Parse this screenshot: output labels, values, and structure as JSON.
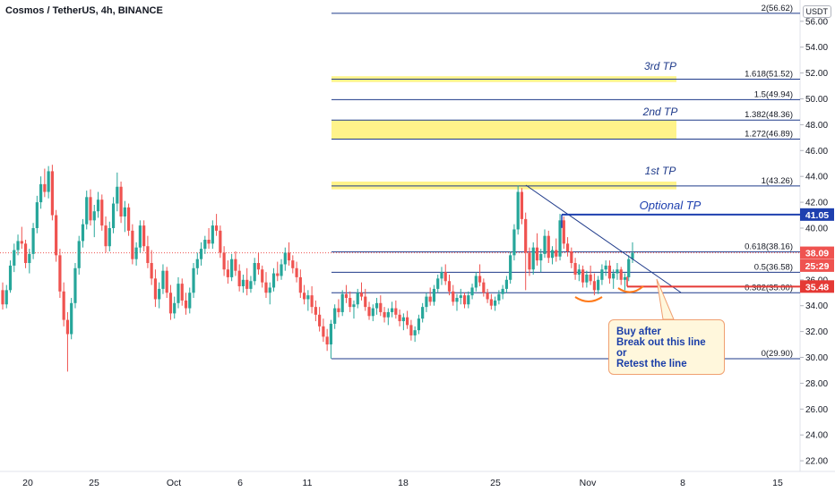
{
  "header": {
    "title": "Cosmos / TetherUS, 4h, BINANCE",
    "currency_badge": "USDT"
  },
  "colors": {
    "up": "#26a69a",
    "down": "#ef5350",
    "fib_line": "#1e3a8a",
    "tp_zone": "#fff176",
    "tp_text": "#1e3a8a",
    "optional_tp_line": "#1e40af",
    "support_line": "#e53935",
    "arc": "#ff7a1a",
    "callout_border": "#f0a070",
    "callout_bg": "#fff7dc"
  },
  "chart_data": {
    "type": "candlestick",
    "symbol": "Cosmos / TetherUS",
    "interval": "4h",
    "exchange": "BINANCE",
    "ylim": [
      21,
      58
    ],
    "y_ticks": [
      "22.00",
      "24.00",
      "26.00",
      "28.00",
      "30.00",
      "32.00",
      "34.00",
      "36.00",
      "38.00",
      "40.00",
      "42.00",
      "44.00",
      "46.00",
      "48.00",
      "50.00",
      "52.00",
      "54.00",
      "56.00"
    ],
    "x_ticks": [
      "20",
      "25",
      "Oct",
      "6",
      "11",
      "18",
      "25",
      "Nov",
      "8",
      "15"
    ],
    "fib_levels": [
      {
        "label": "2(56.62)",
        "value": 56.62
      },
      {
        "label": "1.618(51.52)",
        "value": 51.52
      },
      {
        "label": "1.5(49.94)",
        "value": 49.94
      },
      {
        "label": "1.382(48.36)",
        "value": 48.36
      },
      {
        "label": "1.272(46.89)",
        "value": 46.89
      },
      {
        "label": "1(43.26)",
        "value": 43.26
      },
      {
        "label": "0.618(38.16)",
        "value": 38.16
      },
      {
        "label": "0.5(36.58)",
        "value": 36.58
      },
      {
        "label": "0.382(35.00)",
        "value": 35.0
      },
      {
        "label": "0(29.90)",
        "value": 29.9
      }
    ],
    "tp_zones": [
      {
        "label": "3rd TP",
        "from": 51.3,
        "to": 51.75
      },
      {
        "label": "2nd TP",
        "from": 46.89,
        "to": 48.36
      },
      {
        "label": "1st TP",
        "from": 43.0,
        "to": 43.6
      }
    ],
    "optional_tp": {
      "label": "Optional TP",
      "value": 41.05
    },
    "price_labels": [
      {
        "text": "41.05",
        "value": 41.05,
        "color": "#1e40af"
      },
      {
        "text": "38.09",
        "value": 38.09,
        "color": "#ef5350"
      },
      {
        "text": "25:29",
        "value": 37.1,
        "color": "#ef5350"
      },
      {
        "text": "35.48",
        "value": 35.48,
        "color": "#e53935"
      }
    ],
    "last_price": 38.09,
    "support": 35.48,
    "callout_lines": [
      "Buy after",
      "Break out this line",
      "or",
      "Retest the line"
    ],
    "candles": [
      [
        35.2,
        35.8,
        33.7,
        34.1
      ],
      [
        34.1,
        35.6,
        33.8,
        35.2
      ],
      [
        35.2,
        37.5,
        35.0,
        37.1
      ],
      [
        37.1,
        38.8,
        36.6,
        38.3
      ],
      [
        38.3,
        39.5,
        37.9,
        39.0
      ],
      [
        39.0,
        40.1,
        38.4,
        38.8
      ],
      [
        38.8,
        39.1,
        36.9,
        37.3
      ],
      [
        37.3,
        38.4,
        36.5,
        38.0
      ],
      [
        38.0,
        40.4,
        37.6,
        40.0
      ],
      [
        40.0,
        42.5,
        39.6,
        42.0
      ],
      [
        42.0,
        44.0,
        41.5,
        43.4
      ],
      [
        43.4,
        44.6,
        42.4,
        42.8
      ],
      [
        42.8,
        44.8,
        42.3,
        44.4
      ],
      [
        44.4,
        44.9,
        40.6,
        41.0
      ],
      [
        41.0,
        41.4,
        37.4,
        37.9
      ],
      [
        37.9,
        38.4,
        34.6,
        35.1
      ],
      [
        35.1,
        35.8,
        32.4,
        32.9
      ],
      [
        32.9,
        33.5,
        28.9,
        31.8
      ],
      [
        31.8,
        34.6,
        31.4,
        34.2
      ],
      [
        34.2,
        37.3,
        33.8,
        36.9
      ],
      [
        36.9,
        39.4,
        36.4,
        39.0
      ],
      [
        39.0,
        40.7,
        38.5,
        40.3
      ],
      [
        40.3,
        42.9,
        39.9,
        42.4
      ],
      [
        42.4,
        43.0,
        40.2,
        40.6
      ],
      [
        40.6,
        41.8,
        39.3,
        41.3
      ],
      [
        41.3,
        42.8,
        40.8,
        42.2
      ],
      [
        42.2,
        42.6,
        39.8,
        40.2
      ],
      [
        40.2,
        40.9,
        38.1,
        38.6
      ],
      [
        38.6,
        40.5,
        38.2,
        40.0
      ],
      [
        40.0,
        42.4,
        39.6,
        41.9
      ],
      [
        41.9,
        44.3,
        41.3,
        43.2
      ],
      [
        43.2,
        43.6,
        40.4,
        40.9
      ],
      [
        40.9,
        42.1,
        39.7,
        41.6
      ],
      [
        41.6,
        41.9,
        39.4,
        39.8
      ],
      [
        39.8,
        40.3,
        37.2,
        37.6
      ],
      [
        37.6,
        38.9,
        37.1,
        38.5
      ],
      [
        38.5,
        40.6,
        38.1,
        40.2
      ],
      [
        40.2,
        40.6,
        38.2,
        38.6
      ],
      [
        38.6,
        39.4,
        36.9,
        37.3
      ],
      [
        37.3,
        38.3,
        35.6,
        36.1
      ],
      [
        36.1,
        36.8,
        33.9,
        34.5
      ],
      [
        34.5,
        35.8,
        33.8,
        35.3
      ],
      [
        35.3,
        37.2,
        34.9,
        36.7
      ],
      [
        36.7,
        37.0,
        34.6,
        35.0
      ],
      [
        35.0,
        35.6,
        32.9,
        33.4
      ],
      [
        33.4,
        34.7,
        33.0,
        34.2
      ],
      [
        34.2,
        36.2,
        33.8,
        35.7
      ],
      [
        35.7,
        36.1,
        34.0,
        34.4
      ],
      [
        34.4,
        35.0,
        33.3,
        33.8
      ],
      [
        33.8,
        35.4,
        33.4,
        35.0
      ],
      [
        35.0,
        37.3,
        34.6,
        36.9
      ],
      [
        36.9,
        38.1,
        36.4,
        37.6
      ],
      [
        37.6,
        38.9,
        37.1,
        38.4
      ],
      [
        38.4,
        39.4,
        38.0,
        39.1
      ],
      [
        39.1,
        40.0,
        38.4,
        38.8
      ],
      [
        38.8,
        40.6,
        38.4,
        40.2
      ],
      [
        40.2,
        41.1,
        39.4,
        39.8
      ],
      [
        39.8,
        40.2,
        37.7,
        38.1
      ],
      [
        38.1,
        38.6,
        36.3,
        36.8
      ],
      [
        36.8,
        37.5,
        35.7,
        36.2
      ],
      [
        36.2,
        38.0,
        35.9,
        37.6
      ],
      [
        37.6,
        38.2,
        36.3,
        36.7
      ],
      [
        36.7,
        37.2,
        35.1,
        35.5
      ],
      [
        35.5,
        36.4,
        35.0,
        36.0
      ],
      [
        36.0,
        36.9,
        34.8,
        35.3
      ],
      [
        35.3,
        36.3,
        35.0,
        35.9
      ],
      [
        35.9,
        37.7,
        35.6,
        37.3
      ],
      [
        37.3,
        38.1,
        36.4,
        36.8
      ],
      [
        36.8,
        37.1,
        35.4,
        35.8
      ],
      [
        35.8,
        36.6,
        34.6,
        35.0
      ],
      [
        35.0,
        35.8,
        34.1,
        35.4
      ],
      [
        35.4,
        36.9,
        35.1,
        36.5
      ],
      [
        36.5,
        37.4,
        35.9,
        36.3
      ],
      [
        36.3,
        37.6,
        36.0,
        37.2
      ],
      [
        37.2,
        38.5,
        36.7,
        38.1
      ],
      [
        38.1,
        38.9,
        37.1,
        37.5
      ],
      [
        37.5,
        37.9,
        36.5,
        36.9
      ],
      [
        36.9,
        37.4,
        35.8,
        36.2
      ],
      [
        36.2,
        36.8,
        34.6,
        35.0
      ],
      [
        35.0,
        35.6,
        34.1,
        34.5
      ],
      [
        34.5,
        35.2,
        33.6,
        34.8
      ],
      [
        34.8,
        35.5,
        33.4,
        33.9
      ],
      [
        33.9,
        34.4,
        32.8,
        33.3
      ],
      [
        33.3,
        33.9,
        32.0,
        32.4
      ],
      [
        32.4,
        33.0,
        31.2,
        31.6
      ],
      [
        31.6,
        32.2,
        30.5,
        31.0
      ],
      [
        31.0,
        32.9,
        29.9,
        32.6
      ],
      [
        32.6,
        34.1,
        32.2,
        33.8
      ],
      [
        33.8,
        34.5,
        33.1,
        33.5
      ],
      [
        33.5,
        35.2,
        33.2,
        34.9
      ],
      [
        34.9,
        35.6,
        34.2,
        34.6
      ],
      [
        34.6,
        35.1,
        33.5,
        33.9
      ],
      [
        33.9,
        34.4,
        33.0,
        34.1
      ],
      [
        34.1,
        35.3,
        33.8,
        35.0
      ],
      [
        35.0,
        35.8,
        34.4,
        34.7
      ],
      [
        34.7,
        35.3,
        33.6,
        33.9
      ],
      [
        33.9,
        34.3,
        32.9,
        33.2
      ],
      [
        33.2,
        34.1,
        32.8,
        33.8
      ],
      [
        33.8,
        34.6,
        33.3,
        34.2
      ],
      [
        34.2,
        34.8,
        33.2,
        33.5
      ],
      [
        33.5,
        33.9,
        32.7,
        33.1
      ],
      [
        33.1,
        33.8,
        32.5,
        33.5
      ],
      [
        33.5,
        34.3,
        33.1,
        33.8
      ],
      [
        33.8,
        34.4,
        33.0,
        33.3
      ],
      [
        33.3,
        33.7,
        32.4,
        32.8
      ],
      [
        32.8,
        33.4,
        32.1,
        33.1
      ],
      [
        33.1,
        33.6,
        32.2,
        32.5
      ],
      [
        32.5,
        32.9,
        31.3,
        31.7
      ],
      [
        31.7,
        32.4,
        31.2,
        32.1
      ],
      [
        32.1,
        33.3,
        31.8,
        33.0
      ],
      [
        33.0,
        34.2,
        32.7,
        33.9
      ],
      [
        33.9,
        35.0,
        33.5,
        34.7
      ],
      [
        34.7,
        35.4,
        34.0,
        34.3
      ],
      [
        34.3,
        35.6,
        34.0,
        35.3
      ],
      [
        35.3,
        36.4,
        35.0,
        36.1
      ],
      [
        36.1,
        37.0,
        35.6,
        36.6
      ],
      [
        36.6,
        37.2,
        35.6,
        35.9
      ],
      [
        35.9,
        36.4,
        34.8,
        35.1
      ],
      [
        35.1,
        35.6,
        34.0,
        34.3
      ],
      [
        34.3,
        34.9,
        33.6,
        34.6
      ],
      [
        34.6,
        35.3,
        34.1,
        34.8
      ],
      [
        34.8,
        35.0,
        33.8,
        34.1
      ],
      [
        34.1,
        35.1,
        33.8,
        34.8
      ],
      [
        34.8,
        35.7,
        34.5,
        35.4
      ],
      [
        35.4,
        36.6,
        35.1,
        36.3
      ],
      [
        36.3,
        37.2,
        35.5,
        35.8
      ],
      [
        35.8,
        36.1,
        34.7,
        35.0
      ],
      [
        35.0,
        35.3,
        34.2,
        34.5
      ],
      [
        34.5,
        34.9,
        33.7,
        34.0
      ],
      [
        34.0,
        34.7,
        33.6,
        34.4
      ],
      [
        34.4,
        35.2,
        34.1,
        34.9
      ],
      [
        34.9,
        35.6,
        34.5,
        35.3
      ],
      [
        35.3,
        36.3,
        35.0,
        36.0
      ],
      [
        36.0,
        38.2,
        35.7,
        37.9
      ],
      [
        37.9,
        40.3,
        37.5,
        39.9
      ],
      [
        39.9,
        43.3,
        39.5,
        42.8
      ],
      [
        42.8,
        43.1,
        40.3,
        40.7
      ],
      [
        40.7,
        41.2,
        35.2,
        38.1
      ],
      [
        38.1,
        38.5,
        36.3,
        36.8
      ],
      [
        36.8,
        38.9,
        36.4,
        38.5
      ],
      [
        38.5,
        39.6,
        37.1,
        37.5
      ],
      [
        37.5,
        38.4,
        36.6,
        38.0
      ],
      [
        38.0,
        39.9,
        37.7,
        39.4
      ],
      [
        39.4,
        39.8,
        37.3,
        37.7
      ],
      [
        37.7,
        38.6,
        37.2,
        38.3
      ],
      [
        38.3,
        39.2,
        37.4,
        37.8
      ],
      [
        37.8,
        41.1,
        37.5,
        40.6
      ],
      [
        40.6,
        40.9,
        38.4,
        38.8
      ],
      [
        38.8,
        39.3,
        37.8,
        38.2
      ],
      [
        38.2,
        38.5,
        36.9,
        37.3
      ],
      [
        37.3,
        37.7,
        36.0,
        36.4
      ],
      [
        36.4,
        37.2,
        35.9,
        36.8
      ],
      [
        36.8,
        37.1,
        35.4,
        35.8
      ],
      [
        35.8,
        36.7,
        35.4,
        36.4
      ],
      [
        36.4,
        37.1,
        35.6,
        35.9
      ],
      [
        35.9,
        36.5,
        34.8,
        35.2
      ],
      [
        35.2,
        36.3,
        34.9,
        36.0
      ],
      [
        36.0,
        37.2,
        35.6,
        36.8
      ],
      [
        36.8,
        37.5,
        36.3,
        37.1
      ],
      [
        37.1,
        37.5,
        35.7,
        36.1
      ],
      [
        36.1,
        36.8,
        35.3,
        36.5
      ],
      [
        36.5,
        37.3,
        36.0,
        36.8
      ],
      [
        36.8,
        37.0,
        35.6,
        36.0
      ],
      [
        36.0,
        36.5,
        35.2,
        36.2
      ],
      [
        36.2,
        37.9,
        35.9,
        37.6
      ],
      [
        37.6,
        38.9,
        37.3,
        38.09
      ]
    ]
  }
}
